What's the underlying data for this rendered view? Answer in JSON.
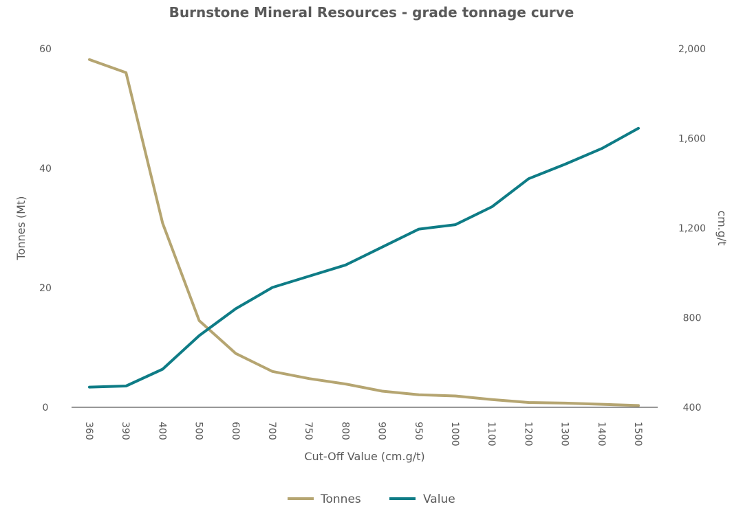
{
  "chart_data": {
    "type": "line",
    "title": "Burnstone Mineral Resources - grade tonnage curve",
    "xlabel": "Cut-Off Value (cm.g/t)",
    "ylabel": "Tonnes (Mt)",
    "y2label": "cm.g/t",
    "categories": [
      "360",
      "390",
      "400",
      "500",
      "600",
      "700",
      "750",
      "800",
      "900",
      "950",
      "1000",
      "1100",
      "1200",
      "1300",
      "1400",
      "1500"
    ],
    "ylim": [
      0,
      60
    ],
    "yticks": [
      "0",
      "20",
      "40",
      "60"
    ],
    "y2lim": [
      400,
      2000
    ],
    "y2ticks": [
      "400",
      "800",
      "1,200",
      "1,600",
      "2,000"
    ],
    "legend_position": "bottom",
    "series": [
      {
        "name": "Tonnes",
        "axis": "left",
        "color": "#B5A571",
        "values": [
          58.2,
          56.0,
          30.8,
          14.5,
          9.0,
          6.0,
          4.8,
          3.9,
          2.7,
          2.1,
          1.9,
          1.3,
          0.8,
          0.7,
          0.5,
          0.3
        ]
      },
      {
        "name": "Value",
        "axis": "right",
        "color": "#0E7C86",
        "values": [
          490,
          495,
          570,
          720,
          840,
          935,
          985,
          1035,
          1115,
          1195,
          1215,
          1295,
          1420,
          1485,
          1555,
          1645
        ]
      }
    ]
  }
}
